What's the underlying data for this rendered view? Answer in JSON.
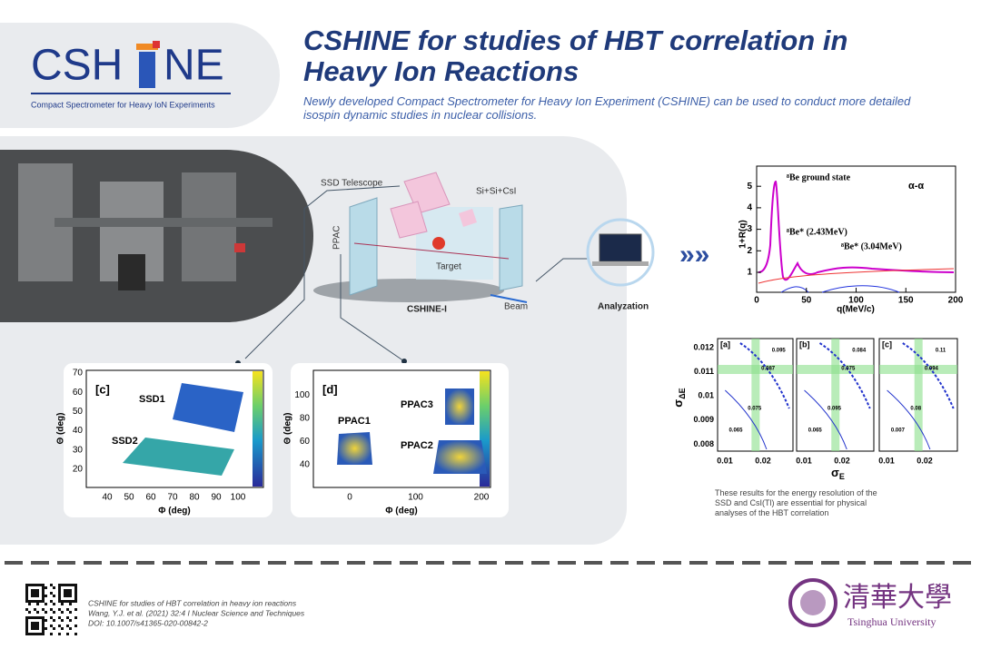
{
  "header": {
    "logo_left": "CSH",
    "logo_right": "NE",
    "tagline": "Compact Spectrometer for Heavy IoN Experiments",
    "title": "CSHINE for studies of HBT correlation in Heavy Ion Reactions",
    "subtitle": "Newly developed Compact Spectrometer for Heavy Ion Experiment (CSHINE) can be used to conduct more detailed isospin dynamic studies in nuclear collisions."
  },
  "setup": {
    "ssd_telescope": "SSD Telescope",
    "si_csi": "Si+Si+CsI",
    "ppac": "PPAC",
    "target": "Target",
    "name": "CSHINE-I",
    "beam": "Beam",
    "analyzation": "Analyzation"
  },
  "correlation_plot": {
    "reaction": "α-α",
    "ylabel": "1+R(q)",
    "xlabel": "q(MeV/c)",
    "yticks": [
      "1",
      "2",
      "3",
      "4",
      "5"
    ],
    "xticks": [
      "0",
      "50",
      "100",
      "150",
      "200"
    ],
    "annotations": [
      "⁸Be ground state",
      "⁸Be* (2.43MeV)",
      "⁸Be* (3.04MeV)"
    ]
  },
  "map_c": {
    "panel": "[c]",
    "detectors": [
      "SSD1",
      "SSD2"
    ],
    "xlabel": "Φ (deg)",
    "ylabel": "Θ (deg)",
    "xticks": [
      "40",
      "50",
      "60",
      "70",
      "80",
      "90",
      "100"
    ],
    "yticks": [
      "20",
      "30",
      "40",
      "50",
      "60",
      "70"
    ]
  },
  "map_d": {
    "panel": "[d]",
    "detectors": [
      "PPAC1",
      "PPAC3",
      "PPAC2"
    ],
    "xlabel": "Φ (deg)",
    "ylabel": "Θ (deg)",
    "xticks": [
      "0",
      "100",
      "200"
    ],
    "yticks": [
      "40",
      "60",
      "80",
      "100"
    ]
  },
  "resolution": {
    "ylabel": "σ",
    "ylabel_sub": "ΔE",
    "xlabel": "σ",
    "xlabel_sub": "E",
    "yticks": [
      "0.012",
      "0.011",
      "0.01",
      "0.009",
      "0.008"
    ],
    "panels": [
      {
        "label": "[a]",
        "xticks": [
          "0.01",
          "0.02"
        ],
        "contours": [
          "0.095",
          "0.087",
          "0.075",
          "0.065"
        ]
      },
      {
        "label": "[b]",
        "xticks": [
          "0.01",
          "0.02"
        ],
        "contours": [
          "0.084",
          "0.075",
          "0.095",
          "0.065"
        ]
      },
      {
        "label": "[c]",
        "xticks": [
          "0.01",
          "0.02"
        ],
        "contours": [
          "0.11",
          "0.094",
          "0.08",
          "0.007"
        ]
      }
    ],
    "caption": "These results for the energy resolution of the SSD and CsI(Tl) are essential for physical analyses of the HBT correlation"
  },
  "footer": {
    "citation": [
      "CSHINE for studies of HBT correlation in heavy ion reactions",
      "Wang, Y.J. et al. (2021) 32:4 I Nuclear Science and Techniques",
      "DOI: 10.1007/s41365-020-00842-2"
    ],
    "university_cn": "清華大學",
    "university": "Tsinghua University"
  }
}
